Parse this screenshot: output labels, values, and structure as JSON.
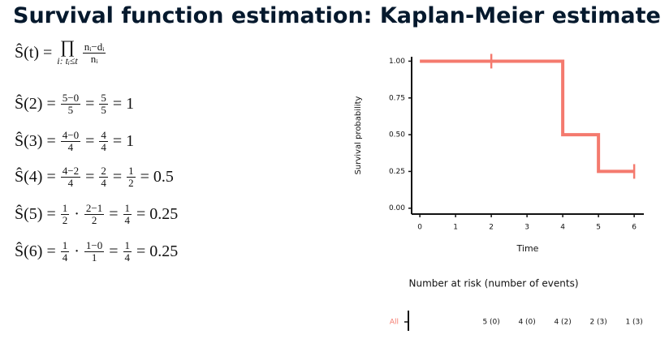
{
  "slide_title": "Survival function estimation: Kaplan-Meier estimate",
  "formulas": [
    [
      {
        "text": "Ŝ(t) ="
      },
      {
        "op": "∏",
        "sub": "i: tᵢ≤t"
      },
      {
        "num": "nᵢ−dᵢ",
        "den": "nᵢ"
      }
    ],
    [
      {
        "text": "Ŝ(2) ="
      },
      {
        "num": "5−0",
        "den": "5"
      },
      {
        "text": "="
      },
      {
        "num": "5",
        "den": "5"
      },
      {
        "text": "= 1"
      }
    ],
    [
      {
        "text": "Ŝ(3) ="
      },
      {
        "num": "4−0",
        "den": "4"
      },
      {
        "text": "="
      },
      {
        "num": "4",
        "den": "4"
      },
      {
        "text": "= 1"
      }
    ],
    [
      {
        "text": "Ŝ(4) ="
      },
      {
        "num": "4−2",
        "den": "4"
      },
      {
        "text": "="
      },
      {
        "num": "2",
        "den": "4"
      },
      {
        "text": "="
      },
      {
        "num": "1",
        "den": "2"
      },
      {
        "text": "= 0.5"
      }
    ],
    [
      {
        "text": "Ŝ(5) ="
      },
      {
        "num": "1",
        "den": "2"
      },
      {
        "text": "·"
      },
      {
        "num": "2−1",
        "den": "2"
      },
      {
        "text": "="
      },
      {
        "num": "1",
        "den": "4"
      },
      {
        "text": "= 0.25"
      }
    ],
    [
      {
        "text": "Ŝ(6) ="
      },
      {
        "num": "1",
        "den": "4"
      },
      {
        "text": "·"
      },
      {
        "num": "1−0",
        "den": "1"
      },
      {
        "text": "="
      },
      {
        "num": "1",
        "den": "4"
      },
      {
        "text": "= 0.25"
      }
    ]
  ],
  "chart_data": {
    "type": "step",
    "x_label": "Time",
    "y_label": "Survival probability",
    "series": [
      {
        "name": "All",
        "color": "#f47a6e",
        "x": [
          0,
          2,
          4,
          5,
          6
        ],
        "values": [
          1,
          1,
          0.5,
          0.25,
          0.25
        ]
      }
    ],
    "censored": {
      "x": [
        2,
        6
      ],
      "values": [
        1,
        0.25
      ]
    },
    "xlim": [
      -0.23,
      6.27
    ],
    "ylim": [
      -0.04,
      1.03
    ],
    "xticks": [
      0,
      1,
      2,
      3,
      4,
      5,
      6
    ],
    "yticks": [
      {
        "value": 0,
        "label": "0.00"
      },
      {
        "value": 0.25,
        "label": "0.25"
      },
      {
        "value": 0.5,
        "label": "0.50"
      },
      {
        "value": 0.75,
        "label": "0.75"
      },
      {
        "value": 1,
        "label": "1.00"
      }
    ],
    "risk_table": {
      "title": "Number at risk (number of events)",
      "x": [
        2,
        3,
        4,
        5,
        6
      ],
      "labels": [
        "5 (0)",
        "4 (0)",
        "4 (2)",
        "2 (3)",
        "1 (3)"
      ]
    }
  }
}
